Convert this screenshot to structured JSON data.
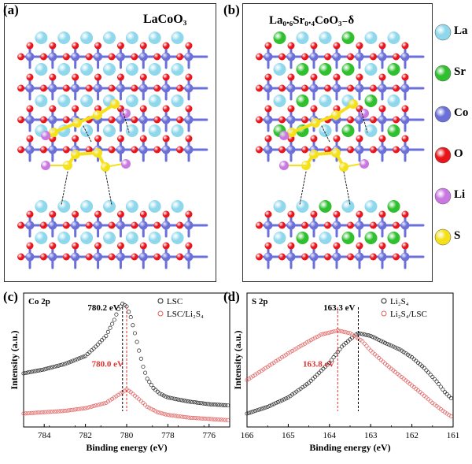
{
  "panels": {
    "a": {
      "letter": "(a)",
      "title": "LaCoO₃"
    },
    "b": {
      "letter": "(b)",
      "title": "La₀.₆Sr₀.₄CoO₃₋δ"
    },
    "c": {
      "letter": "(c)"
    },
    "d": {
      "letter": "(d)"
    }
  },
  "legend": [
    {
      "symbol": "La",
      "color": "#8fd8ec"
    },
    {
      "symbol": "Sr",
      "color": "#2fbf2f"
    },
    {
      "symbol": "Co",
      "color": "#6b70d8"
    },
    {
      "symbol": "O",
      "color": "#e8161a"
    },
    {
      "symbol": "Li",
      "color": "#c878e0"
    },
    {
      "symbol": "S",
      "color": "#f5e11a"
    }
  ],
  "chart_data": [
    {
      "type": "scatter",
      "panel": "c",
      "inner_label": "Co 2p",
      "xlabel": "Binding energy (eV)",
      "ylabel": "Intensity (a.u.)",
      "xlim": [
        785,
        775
      ],
      "x_reversed": true,
      "xticks": [
        "784",
        "782",
        "780",
        "778",
        "776"
      ],
      "series": [
        {
          "name": "LSC",
          "color": "#222222",
          "points": [
            [
              785,
              0.4
            ],
            [
              784,
              0.43
            ],
            [
              783,
              0.47
            ],
            [
              782,
              0.53
            ],
            [
              781.5,
              0.6
            ],
            [
              781,
              0.68
            ],
            [
              780.6,
              0.8
            ],
            [
              780.4,
              0.88
            ],
            [
              780.2,
              0.92
            ],
            [
              780.0,
              0.9
            ],
            [
              779.8,
              0.82
            ],
            [
              779.6,
              0.7
            ],
            [
              779.4,
              0.57
            ],
            [
              779.2,
              0.45
            ],
            [
              779.0,
              0.36
            ],
            [
              778.7,
              0.29
            ],
            [
              778.4,
              0.25
            ],
            [
              778,
              0.22
            ],
            [
              777,
              0.19
            ],
            [
              776,
              0.17
            ],
            [
              775,
              0.16
            ]
          ]
        },
        {
          "name": "LSC/Li₂S₄",
          "color": "#e06060",
          "points": [
            [
              785,
              0.1
            ],
            [
              784,
              0.11
            ],
            [
              783,
              0.12
            ],
            [
              782,
              0.14
            ],
            [
              781,
              0.18
            ],
            [
              780.6,
              0.22
            ],
            [
              780.2,
              0.26
            ],
            [
              780.0,
              0.28
            ],
            [
              779.8,
              0.26
            ],
            [
              779.5,
              0.22
            ],
            [
              779.2,
              0.18
            ],
            [
              779,
              0.15
            ],
            [
              778.5,
              0.11
            ],
            [
              778,
              0.09
            ],
            [
              777,
              0.07
            ],
            [
              776,
              0.06
            ],
            [
              775,
              0.05
            ]
          ]
        }
      ],
      "annotations": [
        {
          "text": "780.2 eV",
          "x": 780.2,
          "color": "#000000"
        },
        {
          "text": "780.0 eV",
          "x": 780.0,
          "color": "#e03030"
        }
      ]
    },
    {
      "type": "scatter",
      "panel": "d",
      "inner_label": "S 2p",
      "xlabel": "Binding energy (eV)",
      "ylabel": "Intensity (a.u.)",
      "xlim": [
        166,
        161
      ],
      "x_reversed": true,
      "xticks": [
        "166",
        "165",
        "164",
        "163",
        "162",
        "161"
      ],
      "series": [
        {
          "name": "Li₂S₄",
          "color": "#222222",
          "points": [
            [
              166,
              0.1
            ],
            [
              165.5,
              0.15
            ],
            [
              165,
              0.22
            ],
            [
              164.5,
              0.33
            ],
            [
              164,
              0.48
            ],
            [
              163.7,
              0.6
            ],
            [
              163.4,
              0.68
            ],
            [
              163.3,
              0.7
            ],
            [
              163.0,
              0.68
            ],
            [
              162.6,
              0.62
            ],
            [
              162.3,
              0.58
            ],
            [
              162,
              0.52
            ],
            [
              161.7,
              0.44
            ],
            [
              161.4,
              0.34
            ],
            [
              161.2,
              0.26
            ],
            [
              161,
              0.2
            ]
          ]
        },
        {
          "name": "Li₂S₄/LSC",
          "color": "#e06060",
          "points": [
            [
              166,
              0.35
            ],
            [
              165.5,
              0.45
            ],
            [
              165,
              0.55
            ],
            [
              164.5,
              0.64
            ],
            [
              164.2,
              0.69
            ],
            [
              163.8,
              0.72
            ],
            [
              163.5,
              0.7
            ],
            [
              163.2,
              0.64
            ],
            [
              163,
              0.57
            ],
            [
              162.6,
              0.46
            ],
            [
              162.2,
              0.36
            ],
            [
              161.8,
              0.26
            ],
            [
              161.5,
              0.18
            ],
            [
              161.2,
              0.11
            ],
            [
              161,
              0.07
            ]
          ]
        }
      ],
      "annotations": [
        {
          "text": "163.3 eV",
          "x": 163.3,
          "color": "#000000"
        },
        {
          "text": "163.8 eV",
          "x": 163.8,
          "color": "#e03030"
        }
      ]
    }
  ]
}
